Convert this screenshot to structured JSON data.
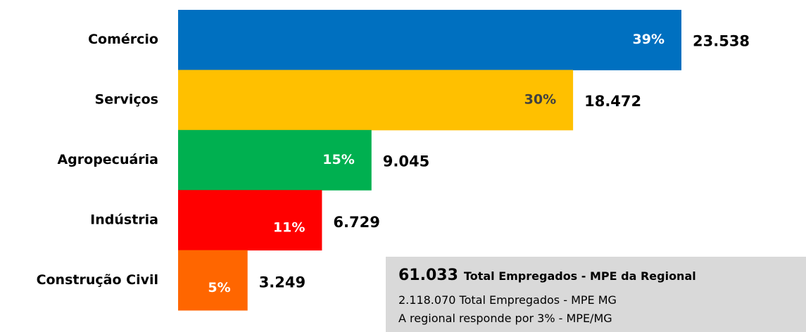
{
  "chart_data": {
    "type": "hbar",
    "categories": [
      "Comércio",
      "Serviços",
      "Agropecuária",
      "Indústria",
      "Construção Civil"
    ],
    "values": [
      23538,
      18472,
      9045,
      6729,
      3249
    ],
    "value_labels": [
      "23.538",
      "18.472",
      "9.045",
      "6.729",
      "3.249"
    ],
    "shares": [
      39,
      30,
      15,
      11,
      5
    ],
    "share_labels": [
      "39%",
      "30%",
      "15%",
      "11%",
      "5%"
    ],
    "colors": [
      "#0070c0",
      "#ffc000",
      "#00b050",
      "#ff0000",
      "#ff6600"
    ],
    "share_label_colors": [
      "#ffffff",
      "#404040",
      "#ffffff",
      "#ffffff",
      "#ffffff"
    ],
    "annotation": {
      "total": "61.033",
      "total_label": "Total Empregados - MPE da Regional",
      "line2": "2.118.070 Total Empregados - MPE MG",
      "line3": "A regional responde por 3% - MPE/MG"
    }
  }
}
